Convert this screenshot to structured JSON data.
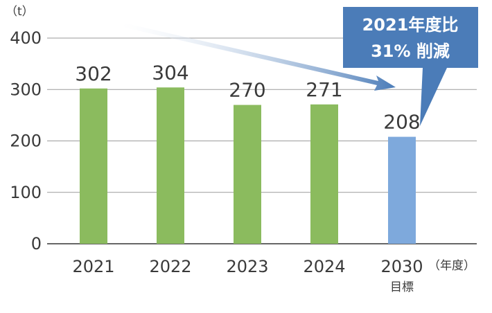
{
  "chart_data": {
    "type": "bar",
    "y_unit": "（t）",
    "ylim": [
      0,
      400
    ],
    "yticks": [
      "0",
      "100",
      "200",
      "300",
      "400"
    ],
    "categories": [
      "2021",
      "2022",
      "2023",
      "2024",
      "2030"
    ],
    "values": [
      302,
      304,
      270,
      271,
      208
    ],
    "value_labels": [
      "302",
      "304",
      "270",
      "271",
      "208"
    ],
    "x_suffix": "（年度）",
    "target_label": "目標",
    "bar_colors": [
      "#8bbb5e",
      "#8bbb5e",
      "#8bbb5e",
      "#8bbb5e",
      "#7ea9dc"
    ],
    "callout": {
      "line1": "2021年度比",
      "line2": "31% 削減",
      "color": "#4b7cb8"
    },
    "grid": true
  }
}
